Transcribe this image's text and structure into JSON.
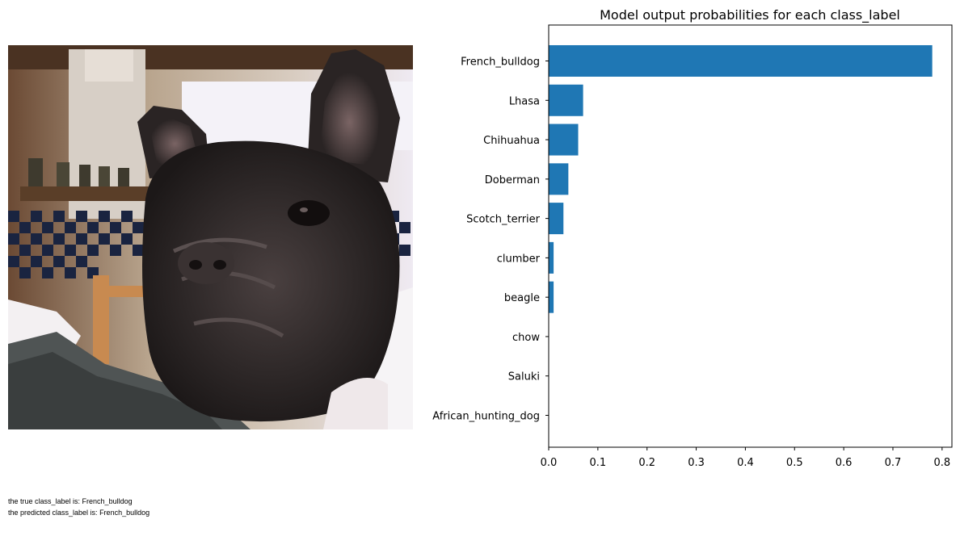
{
  "photo": {
    "subject_icon": "french-bulldog-photo"
  },
  "captions": {
    "true_label": "the true class_label is: French_bulldog",
    "predicted_label": "the predicted class_label is: French_bulldog"
  },
  "chart_data": {
    "type": "bar",
    "orientation": "horizontal",
    "title": "Model output probabilities for each class_label",
    "xlabel": "",
    "ylabel": "",
    "categories": [
      "French_bulldog",
      "Lhasa",
      "Chihuahua",
      "Doberman",
      "Scotch_terrier",
      "clumber",
      "beagle",
      "chow",
      "Saluki",
      "African_hunting_dog"
    ],
    "values": [
      0.78,
      0.07,
      0.06,
      0.04,
      0.03,
      0.01,
      0.01,
      0.0,
      0.0,
      0.0
    ],
    "xlim": [
      0,
      0.82
    ],
    "xticks": [
      "0.0",
      "0.1",
      "0.2",
      "0.3",
      "0.4",
      "0.5",
      "0.6",
      "0.7",
      "0.8"
    ],
    "xtick_values": [
      0,
      0.1,
      0.2,
      0.3,
      0.4,
      0.5,
      0.6,
      0.7,
      0.8
    ],
    "bar_color": "#1f77b4",
    "grid": false,
    "legend": "none"
  }
}
